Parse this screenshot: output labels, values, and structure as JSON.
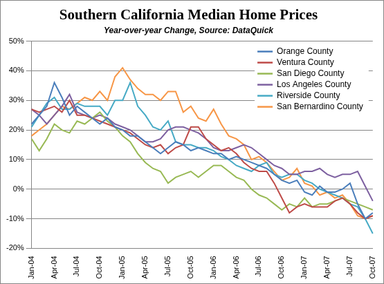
{
  "chart_data": {
    "type": "line",
    "title": "Southern California Median Home Prices",
    "subtitle": "Year-over-year Change, Source: DataQuick",
    "categories": [
      "Jan-04",
      null,
      null,
      "Apr-04",
      null,
      null,
      "Jul-04",
      null,
      null,
      "Oct-04",
      null,
      null,
      "Jan-05",
      null,
      null,
      "Apr-05",
      null,
      null,
      "Jul-05",
      null,
      null,
      "Oct-05",
      null,
      null,
      "Jan-06",
      null,
      null,
      "Apr-06",
      null,
      null,
      "Jul-06",
      null,
      null,
      "Oct-06",
      null,
      null,
      "Jan-07",
      null,
      null,
      "Apr-07",
      null,
      null,
      "Jul-07",
      null,
      null,
      "Oct-07"
    ],
    "series": [
      {
        "name": "Orange County",
        "color": "#4a7ebb",
        "values": [
          22,
          25,
          28,
          36,
          31,
          25,
          28,
          26,
          24,
          22,
          24,
          21,
          20,
          18,
          18,
          16,
          14,
          12,
          14,
          16,
          15,
          13,
          14,
          13,
          12,
          12,
          10,
          11,
          10,
          9,
          8,
          7,
          5,
          3,
          2,
          3,
          -1,
          -2,
          1,
          -1,
          -1,
          0,
          2,
          -5,
          -10,
          -8
        ]
      },
      {
        "name": "Ventura County",
        "color": "#be4b48",
        "values": [
          27,
          26,
          27,
          28,
          26,
          30,
          25,
          25,
          24,
          23,
          22,
          21,
          20,
          19,
          17,
          15,
          14,
          15,
          12,
          14,
          15,
          21,
          21,
          17,
          15,
          13,
          14,
          12,
          9,
          7,
          6,
          6,
          2,
          -3,
          -8,
          -6,
          -5,
          -6,
          -6,
          -6,
          -4,
          -3,
          -5,
          -8,
          -10,
          -9
        ]
      },
      {
        "name": "San Diego County",
        "color": "#98b954",
        "values": [
          17,
          13,
          17,
          22,
          20,
          19,
          23,
          22,
          24,
          26,
          23,
          21,
          18,
          16,
          12,
          9,
          7,
          6,
          2,
          4,
          5,
          6,
          4,
          6,
          8,
          8,
          6,
          4,
          3,
          0,
          -2,
          -3,
          -5,
          -7,
          -5,
          -6,
          -3,
          -6,
          -5,
          -5,
          -4,
          -3,
          -4,
          -5,
          -6,
          -7
        ]
      },
      {
        "name": "Los Angeles County",
        "color": "#7d60a0",
        "values": [
          27,
          25,
          22,
          25,
          28,
          32,
          26,
          25,
          24,
          25,
          24,
          22,
          21,
          20,
          18,
          16,
          16,
          17,
          20,
          21,
          21,
          20,
          19,
          17,
          14,
          13,
          13,
          14,
          15,
          14,
          12,
          10,
          8,
          7,
          5,
          5,
          6,
          6,
          7,
          5,
          4,
          5,
          5,
          6,
          1,
          -4
        ]
      },
      {
        "name": "Riverside County",
        "color": "#46aac5",
        "values": [
          21,
          25,
          29,
          31,
          27,
          27,
          29,
          28,
          28,
          28,
          25,
          30,
          30,
          36,
          28,
          25,
          21,
          20,
          23,
          16,
          15,
          15,
          14,
          14,
          13,
          11,
          10,
          8,
          7,
          6,
          8,
          9,
          5,
          4,
          5,
          5,
          3,
          2,
          0,
          -1,
          -2,
          -3,
          -5,
          -6,
          -10,
          -15
        ]
      },
      {
        "name": "San Bernardino County",
        "color": "#f79646",
        "values": [
          18,
          20,
          22,
          25,
          28,
          27,
          29,
          31,
          30,
          33,
          30,
          38,
          41,
          37,
          34,
          32,
          32,
          30,
          33,
          33,
          26,
          28,
          24,
          23,
          27,
          22,
          18,
          17,
          15,
          10,
          11,
          9,
          6,
          3,
          4,
          7,
          2,
          1,
          -2,
          -1,
          -3,
          -2,
          -5,
          -9,
          -10,
          -9
        ]
      }
    ],
    "ylim": [
      -20,
      50
    ],
    "yticks": [
      {
        "value": -20,
        "label": "-20%"
      },
      {
        "value": -10,
        "label": "-10%"
      },
      {
        "value": 0,
        "label": "0%"
      },
      {
        "value": 10,
        "label": "10%"
      },
      {
        "value": 20,
        "label": "20%"
      },
      {
        "value": 30,
        "label": "30%"
      },
      {
        "value": 40,
        "label": "40%"
      },
      {
        "value": 50,
        "label": "50%"
      }
    ],
    "grid": true,
    "legend": "upper right"
  }
}
